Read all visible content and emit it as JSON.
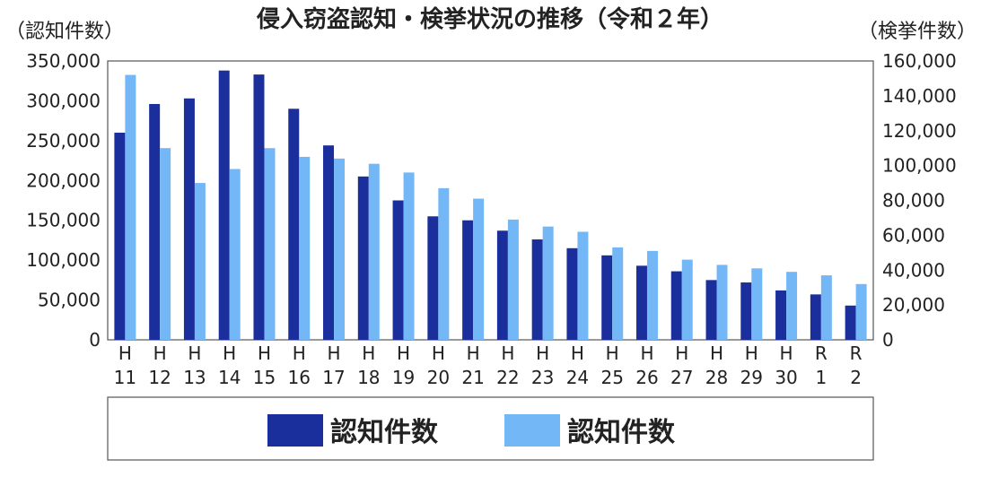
{
  "chart_data": {
    "type": "bar",
    "title": "侵入窃盗認知・検挙状況の推移（令和２年）",
    "left_axis_unit": "（認知件数）",
    "right_axis_unit": "（検挙件数）",
    "categories": [
      {
        "era": "H",
        "year": "11"
      },
      {
        "era": "H",
        "year": "12"
      },
      {
        "era": "H",
        "year": "13"
      },
      {
        "era": "H",
        "year": "14"
      },
      {
        "era": "H",
        "year": "15"
      },
      {
        "era": "H",
        "year": "16"
      },
      {
        "era": "H",
        "year": "17"
      },
      {
        "era": "H",
        "year": "18"
      },
      {
        "era": "H",
        "year": "19"
      },
      {
        "era": "H",
        "year": "20"
      },
      {
        "era": "H",
        "year": "21"
      },
      {
        "era": "H",
        "year": "22"
      },
      {
        "era": "H",
        "year": "23"
      },
      {
        "era": "H",
        "year": "24"
      },
      {
        "era": "H",
        "year": "25"
      },
      {
        "era": "H",
        "year": "26"
      },
      {
        "era": "H",
        "year": "27"
      },
      {
        "era": "H",
        "year": "28"
      },
      {
        "era": "H",
        "year": "29"
      },
      {
        "era": "H",
        "year": "30"
      },
      {
        "era": "R",
        "year": "1"
      },
      {
        "era": "R",
        "year": "2"
      }
    ],
    "highlight_category_index": 1,
    "highlight_color": "#1a2f9c",
    "left_ylim": [
      0,
      350000
    ],
    "left_ticks": [
      "350,000",
      "300,000",
      "250,000",
      "200,000",
      "150,000",
      "100,000",
      "50,000",
      "0"
    ],
    "left_tick_values": [
      350000,
      300000,
      250000,
      200000,
      150000,
      100000,
      50000,
      0
    ],
    "right_ylim": [
      0,
      160000
    ],
    "right_ticks": [
      "160,000",
      "140,000",
      "120,000",
      "100,000",
      "80,000",
      "60,000",
      "40,000",
      "20,000",
      "0"
    ],
    "right_tick_values": [
      160000,
      140000,
      120000,
      100000,
      80000,
      60000,
      40000,
      20000,
      0
    ],
    "grid": false,
    "legend_position": "bottom",
    "series": [
      {
        "name": "認知件数",
        "axis": "left",
        "color": "#1a2f9c",
        "values": [
          260000,
          296000,
          303000,
          338000,
          333000,
          290000,
          244000,
          205000,
          175000,
          155000,
          150000,
          137000,
          126000,
          115000,
          106000,
          93000,
          86000,
          75000,
          72000,
          62000,
          57000,
          43000
        ]
      },
      {
        "name": "認知件数",
        "axis": "right",
        "color": "#74b7f7",
        "values": [
          152000,
          110000,
          90000,
          98000,
          110000,
          105000,
          104000,
          101000,
          96000,
          87000,
          81000,
          69000,
          65000,
          62000,
          53000,
          51000,
          46000,
          43000,
          41000,
          39000,
          37000,
          32000
        ]
      }
    ]
  }
}
